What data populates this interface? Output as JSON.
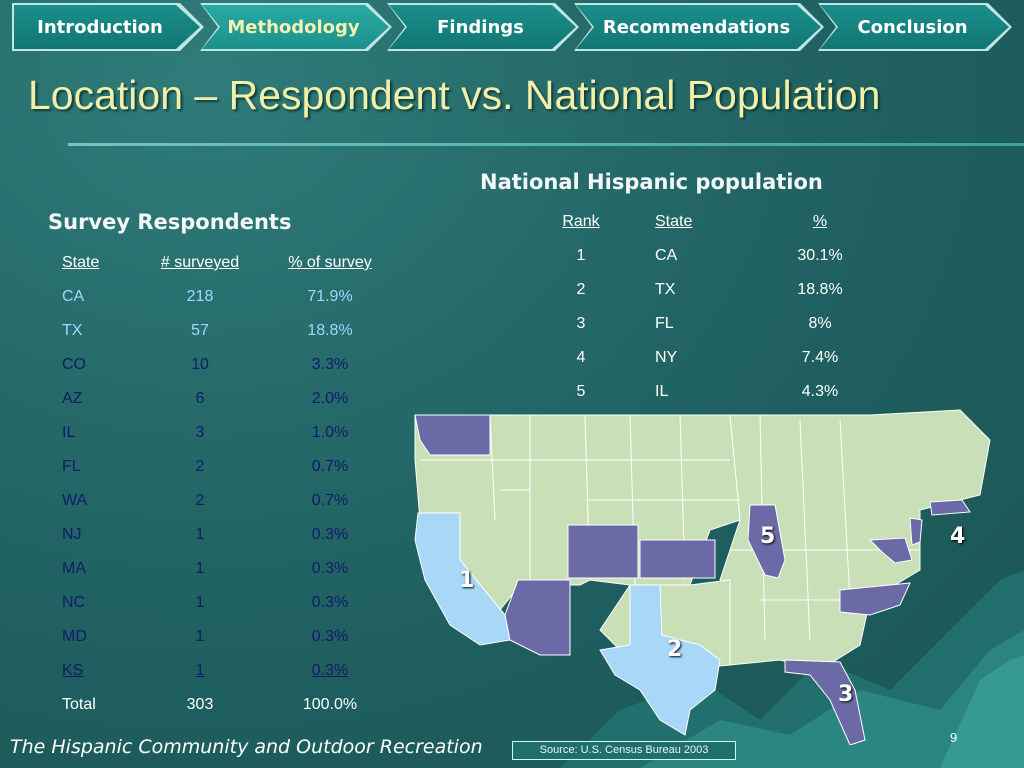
{
  "nav": {
    "tabs": [
      {
        "label": "Introduction",
        "active": false
      },
      {
        "label": "Methodology",
        "active": true
      },
      {
        "label": "Findings",
        "active": false
      },
      {
        "label": "Recommendations",
        "active": false
      },
      {
        "label": "Conclusion",
        "active": false
      }
    ]
  },
  "slide": {
    "title": "Location – Respondent vs. National Population",
    "footer": "The Hispanic Community and Outdoor Recreation",
    "source": "Source: U.S. Census Bureau 2003",
    "page_number": "9"
  },
  "survey": {
    "title": "Survey Respondents",
    "headers": [
      "State",
      "# surveyed",
      "% of survey"
    ],
    "rows": [
      [
        "CA",
        "218",
        "71.9%"
      ],
      [
        "TX",
        "57",
        "18.8%"
      ],
      [
        "CO",
        "10",
        "3.3%"
      ],
      [
        "AZ",
        "6",
        "2.0%"
      ],
      [
        "IL",
        "3",
        "1.0%"
      ],
      [
        "FL",
        "2",
        "0.7%"
      ],
      [
        "WA",
        "2",
        "0.7%"
      ],
      [
        "NJ",
        "1",
        "0.3%"
      ],
      [
        "MA",
        "1",
        "0.3%"
      ],
      [
        "NC",
        "1",
        "0.3%"
      ],
      [
        "MD",
        "1",
        "0.3%"
      ],
      [
        "KS",
        "1",
        "0.3%"
      ]
    ],
    "total": [
      "Total",
      "303",
      "100.0%"
    ]
  },
  "national": {
    "title": "National Hispanic population",
    "headers": [
      "Rank",
      "State",
      "%"
    ],
    "rows": [
      [
        "1",
        "CA",
        "30.1%"
      ],
      [
        "2",
        "TX",
        "18.8%"
      ],
      [
        "3",
        "FL",
        "8%"
      ],
      [
        "4",
        "NY",
        "7.4%"
      ],
      [
        "5",
        "IL",
        "4.3%"
      ]
    ]
  },
  "map": {
    "labels": [
      "1",
      "2",
      "3",
      "4",
      "5"
    ],
    "colors": {
      "base": "#c9dfb7",
      "top5": "#a9d7f7",
      "surveyed": "#6b6aa6",
      "border": "#ffffff"
    }
  }
}
